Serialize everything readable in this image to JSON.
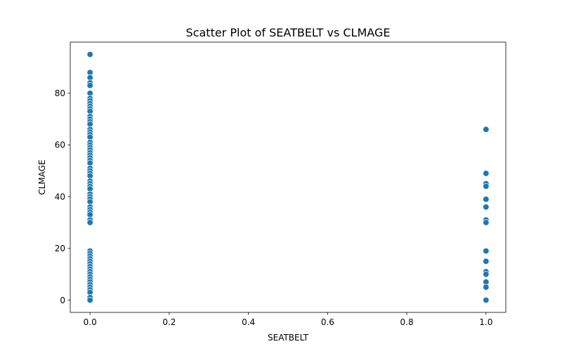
{
  "chart_data": {
    "type": "scatter",
    "title": "Scatter Plot of SEATBELT vs CLMAGE",
    "xlabel": "SEATBELT",
    "ylabel": "CLMAGE",
    "xlim": [
      -0.05,
      1.05
    ],
    "ylim": [
      -4.75,
      99.75
    ],
    "xticks": [
      0.0,
      0.2,
      0.4,
      0.6,
      0.8,
      1.0
    ],
    "xtick_labels": [
      "0.0",
      "0.2",
      "0.4",
      "0.6",
      "0.8",
      "1.0"
    ],
    "yticks": [
      0,
      20,
      40,
      60,
      80
    ],
    "ytick_labels": [
      "0",
      "20",
      "40",
      "60",
      "80"
    ],
    "grid": false,
    "point_color": "#1f77b4",
    "series": [
      {
        "points": [
          {
            "x": 0,
            "y": 95
          },
          {
            "x": 0,
            "y": 88
          },
          {
            "x": 0,
            "y": 86
          },
          {
            "x": 0,
            "y": 84
          },
          {
            "x": 0,
            "y": 83
          },
          {
            "x": 0,
            "y": 80
          },
          {
            "x": 0,
            "y": 78
          },
          {
            "x": 0,
            "y": 77
          },
          {
            "x": 0,
            "y": 76
          },
          {
            "x": 0,
            "y": 75
          },
          {
            "x": 0,
            "y": 74
          },
          {
            "x": 0,
            "y": 73
          },
          {
            "x": 0,
            "y": 71
          },
          {
            "x": 0,
            "y": 70
          },
          {
            "x": 0,
            "y": 69
          },
          {
            "x": 0,
            "y": 68
          },
          {
            "x": 0,
            "y": 66
          },
          {
            "x": 0,
            "y": 65
          },
          {
            "x": 0,
            "y": 64
          },
          {
            "x": 0,
            "y": 63
          },
          {
            "x": 0,
            "y": 61
          },
          {
            "x": 0,
            "y": 60
          },
          {
            "x": 0,
            "y": 59
          },
          {
            "x": 0,
            "y": 58
          },
          {
            "x": 0,
            "y": 57
          },
          {
            "x": 0,
            "y": 56
          },
          {
            "x": 0,
            "y": 55
          },
          {
            "x": 0,
            "y": 54
          },
          {
            "x": 0,
            "y": 53
          },
          {
            "x": 0,
            "y": 51
          },
          {
            "x": 0,
            "y": 50
          },
          {
            "x": 0,
            "y": 49
          },
          {
            "x": 0,
            "y": 48
          },
          {
            "x": 0,
            "y": 46
          },
          {
            "x": 0,
            "y": 45
          },
          {
            "x": 0,
            "y": 44
          },
          {
            "x": 0,
            "y": 43
          },
          {
            "x": 0,
            "y": 41
          },
          {
            "x": 0,
            "y": 40
          },
          {
            "x": 0,
            "y": 39
          },
          {
            "x": 0,
            "y": 38
          },
          {
            "x": 0,
            "y": 36
          },
          {
            "x": 0,
            "y": 35
          },
          {
            "x": 0,
            "y": 34
          },
          {
            "x": 0,
            "y": 33
          },
          {
            "x": 0,
            "y": 31
          },
          {
            "x": 0,
            "y": 30
          },
          {
            "x": 0,
            "y": 19
          },
          {
            "x": 0,
            "y": 18
          },
          {
            "x": 0,
            "y": 17
          },
          {
            "x": 0,
            "y": 16
          },
          {
            "x": 0,
            "y": 15
          },
          {
            "x": 0,
            "y": 14
          },
          {
            "x": 0,
            "y": 13
          },
          {
            "x": 0,
            "y": 12
          },
          {
            "x": 0,
            "y": 11
          },
          {
            "x": 0,
            "y": 10
          },
          {
            "x": 0,
            "y": 9
          },
          {
            "x": 0,
            "y": 8
          },
          {
            "x": 0,
            "y": 7
          },
          {
            "x": 0,
            "y": 6
          },
          {
            "x": 0,
            "y": 5
          },
          {
            "x": 0,
            "y": 4
          },
          {
            "x": 0,
            "y": 3
          },
          {
            "x": 0,
            "y": 1
          },
          {
            "x": 0,
            "y": 0
          },
          {
            "x": 1,
            "y": 66
          },
          {
            "x": 1,
            "y": 49
          },
          {
            "x": 1,
            "y": 45
          },
          {
            "x": 1,
            "y": 44
          },
          {
            "x": 1,
            "y": 39
          },
          {
            "x": 1,
            "y": 36
          },
          {
            "x": 1,
            "y": 31
          },
          {
            "x": 1,
            "y": 30
          },
          {
            "x": 1,
            "y": 19
          },
          {
            "x": 1,
            "y": 15
          },
          {
            "x": 1,
            "y": 11
          },
          {
            "x": 1,
            "y": 10
          },
          {
            "x": 1,
            "y": 7
          },
          {
            "x": 1,
            "y": 5
          },
          {
            "x": 1,
            "y": 0
          }
        ]
      }
    ]
  }
}
